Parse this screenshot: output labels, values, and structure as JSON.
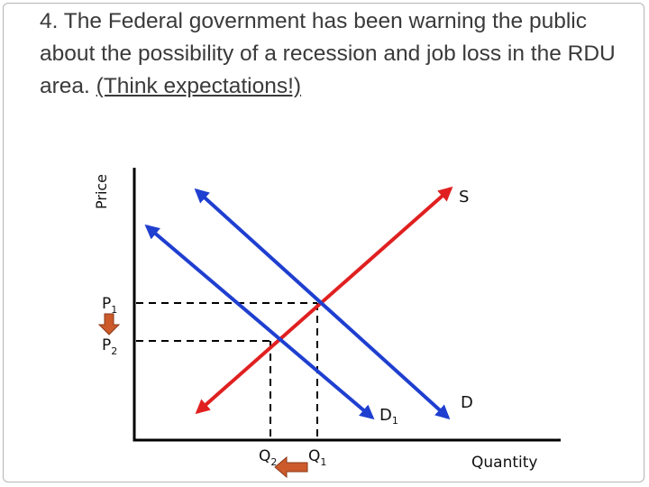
{
  "slide": {
    "title_main": "4. The Federal government has been warning the public about the possibility of a recession and job loss in the RDU area. ",
    "title_emphasis": "(Think expectations!)"
  },
  "diagram": {
    "axis_labels": {
      "y": "Price",
      "x": "Quantity"
    },
    "curve_labels": {
      "supply": "S",
      "demand_original": "D",
      "demand_new_base": "D",
      "demand_new_sub": "1"
    },
    "price_labels": {
      "p1_base": "P",
      "p1_sub": "1",
      "p2_base": "P",
      "p2_sub": "2"
    },
    "quantity_labels": {
      "q1_base": "Q",
      "q1_sub": "1",
      "q2_base": "Q",
      "q2_sub": "2"
    },
    "colors": {
      "supply": "#e02020",
      "demand": "#1f3fd0",
      "arrow_shift": "#cc5a2a",
      "axes": "#000000"
    },
    "arrows": {
      "price_change": "down",
      "quantity_change": "left"
    }
  }
}
